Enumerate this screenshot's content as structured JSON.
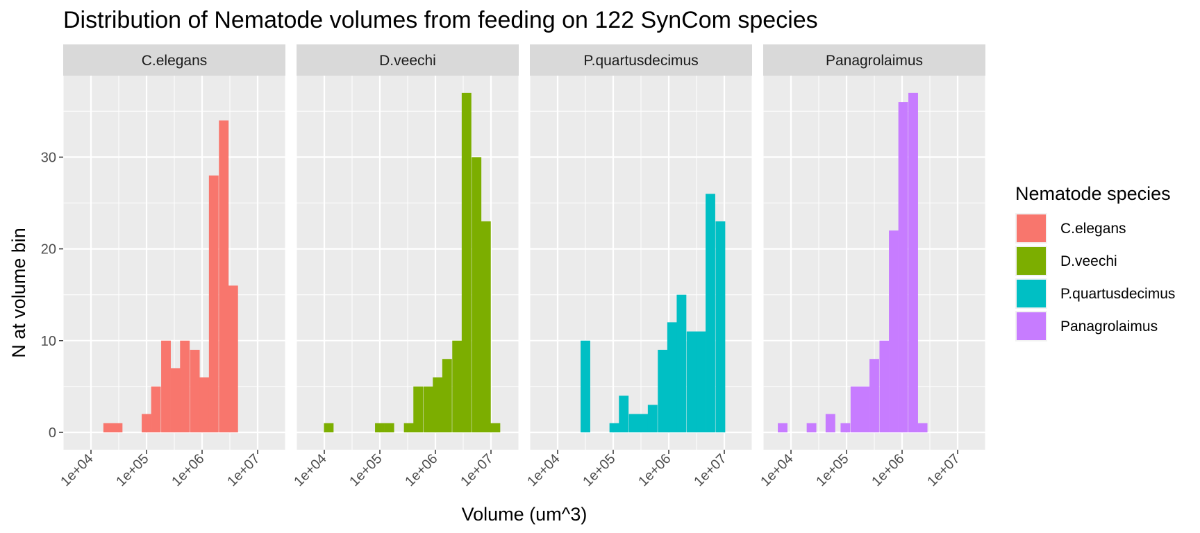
{
  "chart_data": {
    "type": "bar",
    "title": "Distribution of Nematode volumes from feeding on 122 SynCom species",
    "xlabel": "Volume (um^3)",
    "ylabel": "N at volume bin",
    "x_scale": "log10",
    "x_ticks": [
      10000,
      100000,
      1000000,
      10000000
    ],
    "x_tick_labels": [
      "1e+04",
      "1e+05",
      "1e+06",
      "1e+07"
    ],
    "y_ticks": [
      0,
      10,
      20,
      30
    ],
    "y_tick_labels": [
      "0",
      "10",
      "20",
      "30"
    ],
    "ylim": [
      0,
      39
    ],
    "xlim_log10": [
      3.5,
      7.5
    ],
    "bin_width_log10": 0.1736,
    "grid": true,
    "legend": {
      "title": "Nematode species",
      "position": "right",
      "entries": [
        {
          "name": "C.elegans",
          "color": "#F8766D"
        },
        {
          "name": "D.veechi",
          "color": "#7CAE00"
        },
        {
          "name": "P.quartusdecimus",
          "color": "#00BFC4"
        },
        {
          "name": "Panagrolaimus",
          "color": "#C77CFF"
        }
      ]
    },
    "panels": [
      {
        "name": "C.elegans",
        "color": "#F8766D",
        "bin_centers_log10": [
          4.31,
          4.48,
          5.0,
          5.17,
          5.35,
          5.52,
          5.69,
          5.87,
          6.04,
          6.21,
          6.39,
          6.56
        ],
        "counts": [
          1,
          1,
          2,
          5,
          10,
          7,
          10,
          9,
          6,
          28,
          34,
          16
        ]
      },
      {
        "name": "D.veechi",
        "color": "#7CAE00",
        "bin_centers_log10": [
          4.08,
          5.0,
          5.17,
          5.52,
          5.69,
          5.87,
          6.04,
          6.21,
          6.39,
          6.56,
          6.74,
          6.91,
          7.08
        ],
        "counts": [
          1,
          1,
          1,
          1,
          5,
          5,
          6,
          8,
          10,
          37,
          30,
          23,
          1
        ]
      },
      {
        "name": "P.quartusdecimus",
        "color": "#00BFC4",
        "bin_centers_log10": [
          4.5,
          5.02,
          5.19,
          5.37,
          5.54,
          5.71,
          5.89,
          6.06,
          6.23,
          6.41,
          6.58,
          6.75,
          6.93
        ],
        "counts": [
          10,
          1,
          4,
          2,
          2,
          3,
          9,
          12,
          15,
          11,
          11,
          26,
          23
        ]
      },
      {
        "name": "Panagrolaimus",
        "color": "#C77CFF",
        "bin_centers_log10": [
          3.85,
          4.37,
          4.71,
          4.98,
          5.16,
          5.33,
          5.5,
          5.68,
          5.85,
          6.02,
          6.2,
          6.37
        ],
        "counts": [
          1,
          1,
          2,
          1,
          5,
          5,
          8,
          10,
          22,
          36,
          37,
          1
        ]
      }
    ]
  }
}
